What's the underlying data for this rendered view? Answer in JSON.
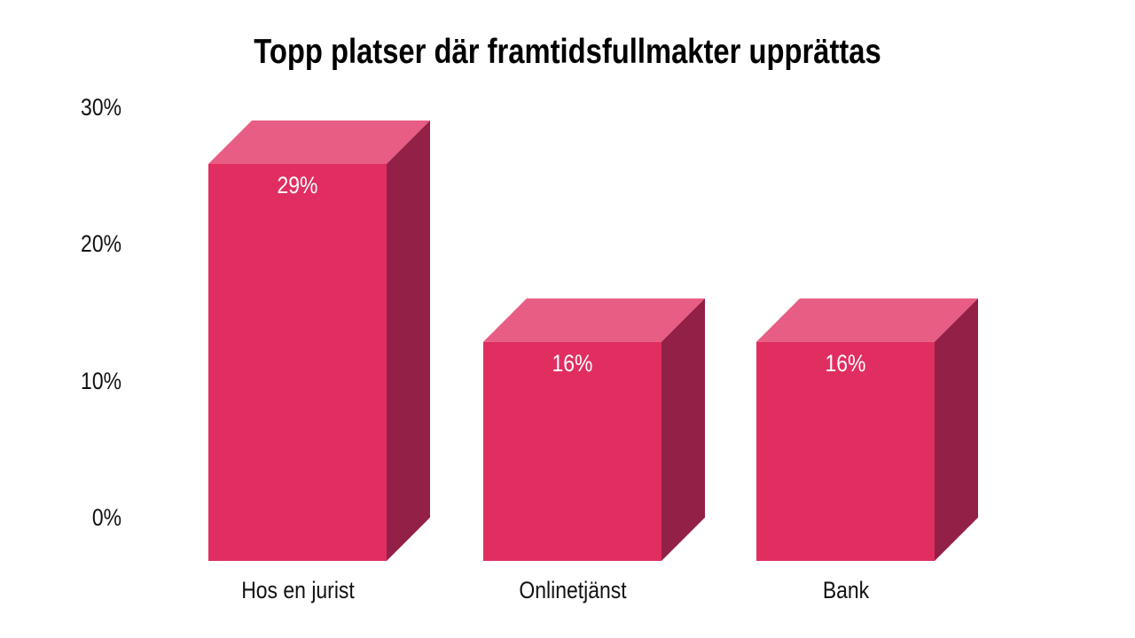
{
  "page": {
    "background_color": "#ffffff"
  },
  "chart_data": {
    "type": "bar",
    "projection": "3d",
    "title": "Topp platser där framtidsfullmakter upprättas",
    "categories": [
      "Hos en jurist",
      "Onlinetjänst",
      "Bank"
    ],
    "values": [
      29,
      16,
      16
    ],
    "value_labels": [
      "29%",
      "16%",
      "16%"
    ],
    "y_tick_values": [
      0,
      10,
      20,
      30
    ],
    "y_ticks": [
      "0%",
      "10%",
      "20%",
      "30%"
    ],
    "ylim": [
      0,
      30
    ],
    "xlabel": "",
    "ylabel": "",
    "grid": false,
    "legend": "none",
    "colors": {
      "bar_front": "#e02e60",
      "bar_top": "#e85d84",
      "bar_side": "#932047",
      "value_label_text": "#ffffff",
      "title_text": "#000000",
      "axis_text": "#111111",
      "background": "#ffffff"
    }
  }
}
